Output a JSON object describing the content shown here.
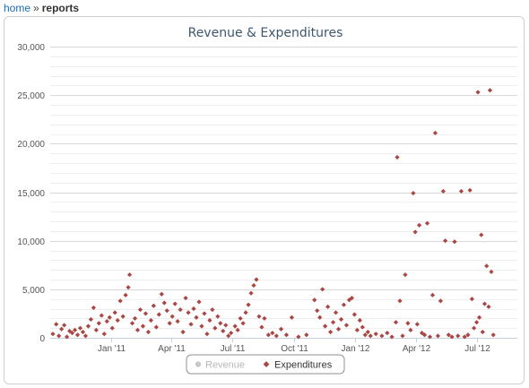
{
  "breadcrumb": {
    "home": "home",
    "separator": "»",
    "current": "reports"
  },
  "colors": {
    "expenditures": "#aa4643",
    "revenue_hidden": "#c8c8c8",
    "grid": "#d8d8d8",
    "minor_grid": "#eeeeee",
    "axis": "#c0d0e0",
    "title": "#3e576f"
  },
  "chart_data": {
    "type": "scatter",
    "title": "Revenue & Expenditures",
    "xlabel": "",
    "ylabel": "",
    "xlim": [
      "2010-10-01",
      "2012-08-31"
    ],
    "ylim": [
      0,
      30000
    ],
    "y_ticks": [
      0,
      5000,
      10000,
      15000,
      20000,
      25000,
      30000
    ],
    "y_tick_labels": [
      "0",
      "5,000",
      "10,000",
      "15,000",
      "20,000",
      "25,000",
      "30,000"
    ],
    "x_ticks": [
      "2011-01-01",
      "2011-04-01",
      "2011-07-01",
      "2011-10-01",
      "2012-01-01",
      "2012-04-01",
      "2012-07-01"
    ],
    "x_tick_labels": [
      "Jan '11",
      "Apr '11",
      "Jul '11",
      "Oct '11",
      "Jan '12",
      "Apr '12",
      "Jul '12"
    ],
    "grid": true,
    "legend_position": "bottom-center",
    "series": [
      {
        "name": "Revenue",
        "visible": false,
        "color": "#c8c8c8",
        "marker": "circle",
        "points": []
      },
      {
        "name": "Expenditures",
        "visible": true,
        "color": "#aa4643",
        "marker": "diamond",
        "points": [
          [
            "2010-10-05",
            400
          ],
          [
            "2010-10-10",
            1400
          ],
          [
            "2010-10-14",
            200
          ],
          [
            "2010-10-18",
            900
          ],
          [
            "2010-10-22",
            1300
          ],
          [
            "2010-10-26",
            100
          ],
          [
            "2010-10-30",
            700
          ],
          [
            "2010-11-03",
            500
          ],
          [
            "2010-11-07",
            800
          ],
          [
            "2010-11-11",
            300
          ],
          [
            "2010-11-15",
            1000
          ],
          [
            "2010-11-19",
            600
          ],
          [
            "2010-11-23",
            200
          ],
          [
            "2010-11-27",
            1200
          ],
          [
            "2010-12-01",
            1900
          ],
          [
            "2010-12-05",
            3100
          ],
          [
            "2010-12-09",
            800
          ],
          [
            "2010-12-13",
            1500
          ],
          [
            "2010-12-17",
            2300
          ],
          [
            "2010-12-21",
            400
          ],
          [
            "2010-12-25",
            1700
          ],
          [
            "2010-12-29",
            2100
          ],
          [
            "2011-01-02",
            1000
          ],
          [
            "2011-01-06",
            2600
          ],
          [
            "2011-01-10",
            1800
          ],
          [
            "2011-01-14",
            3800
          ],
          [
            "2011-01-18",
            2200
          ],
          [
            "2011-01-22",
            4400
          ],
          [
            "2011-01-26",
            5200
          ],
          [
            "2011-01-28",
            6500
          ],
          [
            "2011-02-01",
            1500
          ],
          [
            "2011-02-05",
            2000
          ],
          [
            "2011-02-09",
            800
          ],
          [
            "2011-02-13",
            2900
          ],
          [
            "2011-02-17",
            1200
          ],
          [
            "2011-02-21",
            2500
          ],
          [
            "2011-02-25",
            600
          ],
          [
            "2011-03-01",
            1800
          ],
          [
            "2011-03-05",
            3300
          ],
          [
            "2011-03-09",
            1100
          ],
          [
            "2011-03-13",
            2400
          ],
          [
            "2011-03-17",
            4500
          ],
          [
            "2011-03-21",
            3600
          ],
          [
            "2011-03-25",
            2800
          ],
          [
            "2011-03-29",
            1500
          ],
          [
            "2011-04-02",
            2200
          ],
          [
            "2011-04-06",
            3500
          ],
          [
            "2011-04-10",
            1700
          ],
          [
            "2011-04-14",
            2900
          ],
          [
            "2011-04-18",
            600
          ],
          [
            "2011-04-22",
            4100
          ],
          [
            "2011-04-26",
            2600
          ],
          [
            "2011-04-30",
            1400
          ],
          [
            "2011-05-04",
            3000
          ],
          [
            "2011-05-08",
            2100
          ],
          [
            "2011-05-12",
            3700
          ],
          [
            "2011-05-16",
            1200
          ],
          [
            "2011-05-20",
            2500
          ],
          [
            "2011-05-24",
            400
          ],
          [
            "2011-05-28",
            1800
          ],
          [
            "2011-06-01",
            2900
          ],
          [
            "2011-06-05",
            1000
          ],
          [
            "2011-06-09",
            2200
          ],
          [
            "2011-06-13",
            1500
          ],
          [
            "2011-06-17",
            700
          ],
          [
            "2011-06-21",
            1300
          ],
          [
            "2011-06-25",
            200
          ],
          [
            "2011-06-29",
            500
          ],
          [
            "2011-07-05",
            1200
          ],
          [
            "2011-07-09",
            800
          ],
          [
            "2011-07-13",
            2000
          ],
          [
            "2011-07-17",
            1500
          ],
          [
            "2011-07-21",
            2600
          ],
          [
            "2011-07-25",
            3400
          ],
          [
            "2011-07-29",
            4600
          ],
          [
            "2011-08-02",
            5400
          ],
          [
            "2011-08-06",
            6000
          ],
          [
            "2011-08-10",
            2200
          ],
          [
            "2011-08-14",
            1100
          ],
          [
            "2011-08-18",
            2000
          ],
          [
            "2011-08-24",
            300
          ],
          [
            "2011-08-30",
            500
          ],
          [
            "2011-09-05",
            200
          ],
          [
            "2011-09-12",
            900
          ],
          [
            "2011-09-20",
            300
          ],
          [
            "2011-09-28",
            2100
          ],
          [
            "2011-10-08",
            100
          ],
          [
            "2011-10-20",
            300
          ],
          [
            "2011-11-01",
            3900
          ],
          [
            "2011-11-05",
            2800
          ],
          [
            "2011-11-09",
            2100
          ],
          [
            "2011-11-13",
            5000
          ],
          [
            "2011-11-17",
            1200
          ],
          [
            "2011-11-21",
            3200
          ],
          [
            "2011-11-25",
            600
          ],
          [
            "2011-11-29",
            1600
          ],
          [
            "2011-12-03",
            2600
          ],
          [
            "2011-12-07",
            900
          ],
          [
            "2011-12-11",
            1900
          ],
          [
            "2011-12-15",
            3400
          ],
          [
            "2011-12-19",
            1300
          ],
          [
            "2011-12-23",
            3900
          ],
          [
            "2011-12-27",
            4100
          ],
          [
            "2011-12-31",
            2400
          ],
          [
            "2012-01-04",
            800
          ],
          [
            "2012-01-08",
            1800
          ],
          [
            "2012-01-12",
            1100
          ],
          [
            "2012-01-16",
            300
          ],
          [
            "2012-01-20",
            600
          ],
          [
            "2012-01-24",
            200
          ],
          [
            "2012-02-01",
            400
          ],
          [
            "2012-02-10",
            200
          ],
          [
            "2012-02-18",
            500
          ],
          [
            "2012-02-25",
            100
          ],
          [
            "2012-03-02",
            1600
          ],
          [
            "2012-03-04",
            18600
          ],
          [
            "2012-03-08",
            3800
          ],
          [
            "2012-03-12",
            200
          ],
          [
            "2012-03-16",
            6500
          ],
          [
            "2012-03-20",
            1500
          ],
          [
            "2012-03-24",
            800
          ],
          [
            "2012-03-28",
            14900
          ],
          [
            "2012-03-31",
            10900
          ],
          [
            "2012-04-03",
            1400
          ],
          [
            "2012-04-06",
            11600
          ],
          [
            "2012-04-10",
            500
          ],
          [
            "2012-04-14",
            300
          ],
          [
            "2012-04-18",
            11800
          ],
          [
            "2012-04-22",
            100
          ],
          [
            "2012-04-26",
            4400
          ],
          [
            "2012-04-30",
            21100
          ],
          [
            "2012-05-04",
            200
          ],
          [
            "2012-05-08",
            3800
          ],
          [
            "2012-05-12",
            15100
          ],
          [
            "2012-05-15",
            10000
          ],
          [
            "2012-05-20",
            300
          ],
          [
            "2012-05-25",
            100
          ],
          [
            "2012-05-29",
            9900
          ],
          [
            "2012-06-03",
            200
          ],
          [
            "2012-06-08",
            15100
          ],
          [
            "2012-06-13",
            100
          ],
          [
            "2012-06-18",
            300
          ],
          [
            "2012-06-21",
            15200
          ],
          [
            "2012-06-24",
            4000
          ],
          [
            "2012-06-27",
            1000
          ],
          [
            "2012-07-01",
            1600
          ],
          [
            "2012-07-03",
            25300
          ],
          [
            "2012-07-05",
            2100
          ],
          [
            "2012-07-08",
            10600
          ],
          [
            "2012-07-10",
            600
          ],
          [
            "2012-07-13",
            3500
          ],
          [
            "2012-07-16",
            7400
          ],
          [
            "2012-07-19",
            3200
          ],
          [
            "2012-07-21",
            25500
          ],
          [
            "2012-07-23",
            6800
          ],
          [
            "2012-07-26",
            300
          ]
        ]
      }
    ],
    "legend": [
      {
        "label": "Revenue",
        "color": "#c8c8c8",
        "marker": "circle",
        "active": false
      },
      {
        "label": "Expenditures",
        "color": "#aa4643",
        "marker": "diamond",
        "active": true
      }
    ]
  }
}
